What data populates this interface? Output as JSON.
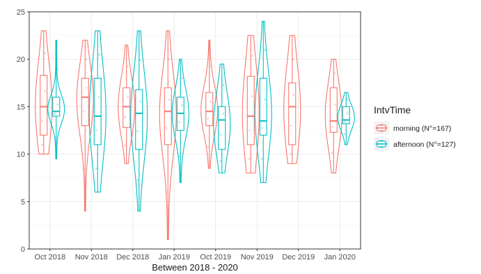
{
  "chart_data": {
    "type": "violin-box",
    "title": "",
    "xlabel": "Between 2018 - 2020",
    "ylabel": "",
    "ylim": [
      0,
      25
    ],
    "yticks": [
      0,
      5,
      10,
      15,
      20,
      25
    ],
    "categories": [
      "Oct 2018",
      "Nov 2018",
      "Dec 2018",
      "Jan 2019",
      "Oct 2019",
      "Nov 2019",
      "Dec 2019",
      "Jan 2020"
    ],
    "grid": true,
    "legend_position": "right",
    "legend": {
      "title": "IntvTime",
      "items": [
        "morning (N°=167)",
        "afternoon (N°=127)"
      ]
    },
    "series": [
      {
        "key": "morning",
        "label": "morning (N°=167)",
        "color": "#F8766D",
        "stats": [
          {
            "min": 10,
            "q1": 12,
            "median": 15,
            "q3": 18.3,
            "max": 23
          },
          {
            "min": 4,
            "q1": 13,
            "median": 16,
            "q3": 18,
            "max": 22
          },
          {
            "min": 9,
            "q1": 12.8,
            "median": 15,
            "q3": 17,
            "max": 21.5
          },
          {
            "min": 1,
            "q1": 11,
            "median": 14.5,
            "q3": 17,
            "max": 23
          },
          {
            "min": 8.5,
            "q1": 13,
            "median": 14.5,
            "q3": 16.5,
            "max": 22
          },
          {
            "min": 8,
            "q1": 11,
            "median": 14,
            "q3": 18.2,
            "max": 22.5
          },
          {
            "min": 9,
            "q1": 11,
            "median": 15,
            "q3": 17.5,
            "max": 22.5
          },
          {
            "min": 8,
            "q1": 12.3,
            "median": 13.5,
            "q3": 17,
            "max": 20
          }
        ]
      },
      {
        "key": "afternoon",
        "label": "afternoon (N°=127)",
        "color": "#00BFC4",
        "stats": [
          {
            "min": 9.5,
            "q1": 14,
            "median": 14.5,
            "q3": 16,
            "max": 22
          },
          {
            "min": 6,
            "q1": 11,
            "median": 14,
            "q3": 18,
            "max": 23
          },
          {
            "min": 4,
            "q1": 10.5,
            "median": 14.3,
            "q3": 16.8,
            "max": 23
          },
          {
            "min": 7,
            "q1": 12.5,
            "median": 14.3,
            "q3": 16,
            "max": 20
          },
          {
            "min": 8,
            "q1": 10.5,
            "median": 13.6,
            "q3": 15,
            "max": 19.5
          },
          {
            "min": 7,
            "q1": 12,
            "median": 13.5,
            "q3": 18,
            "max": 24
          },
          null,
          {
            "min": 11,
            "q1": 13.2,
            "median": 13.6,
            "q3": 15,
            "max": 16.5
          }
        ]
      }
    ]
  }
}
